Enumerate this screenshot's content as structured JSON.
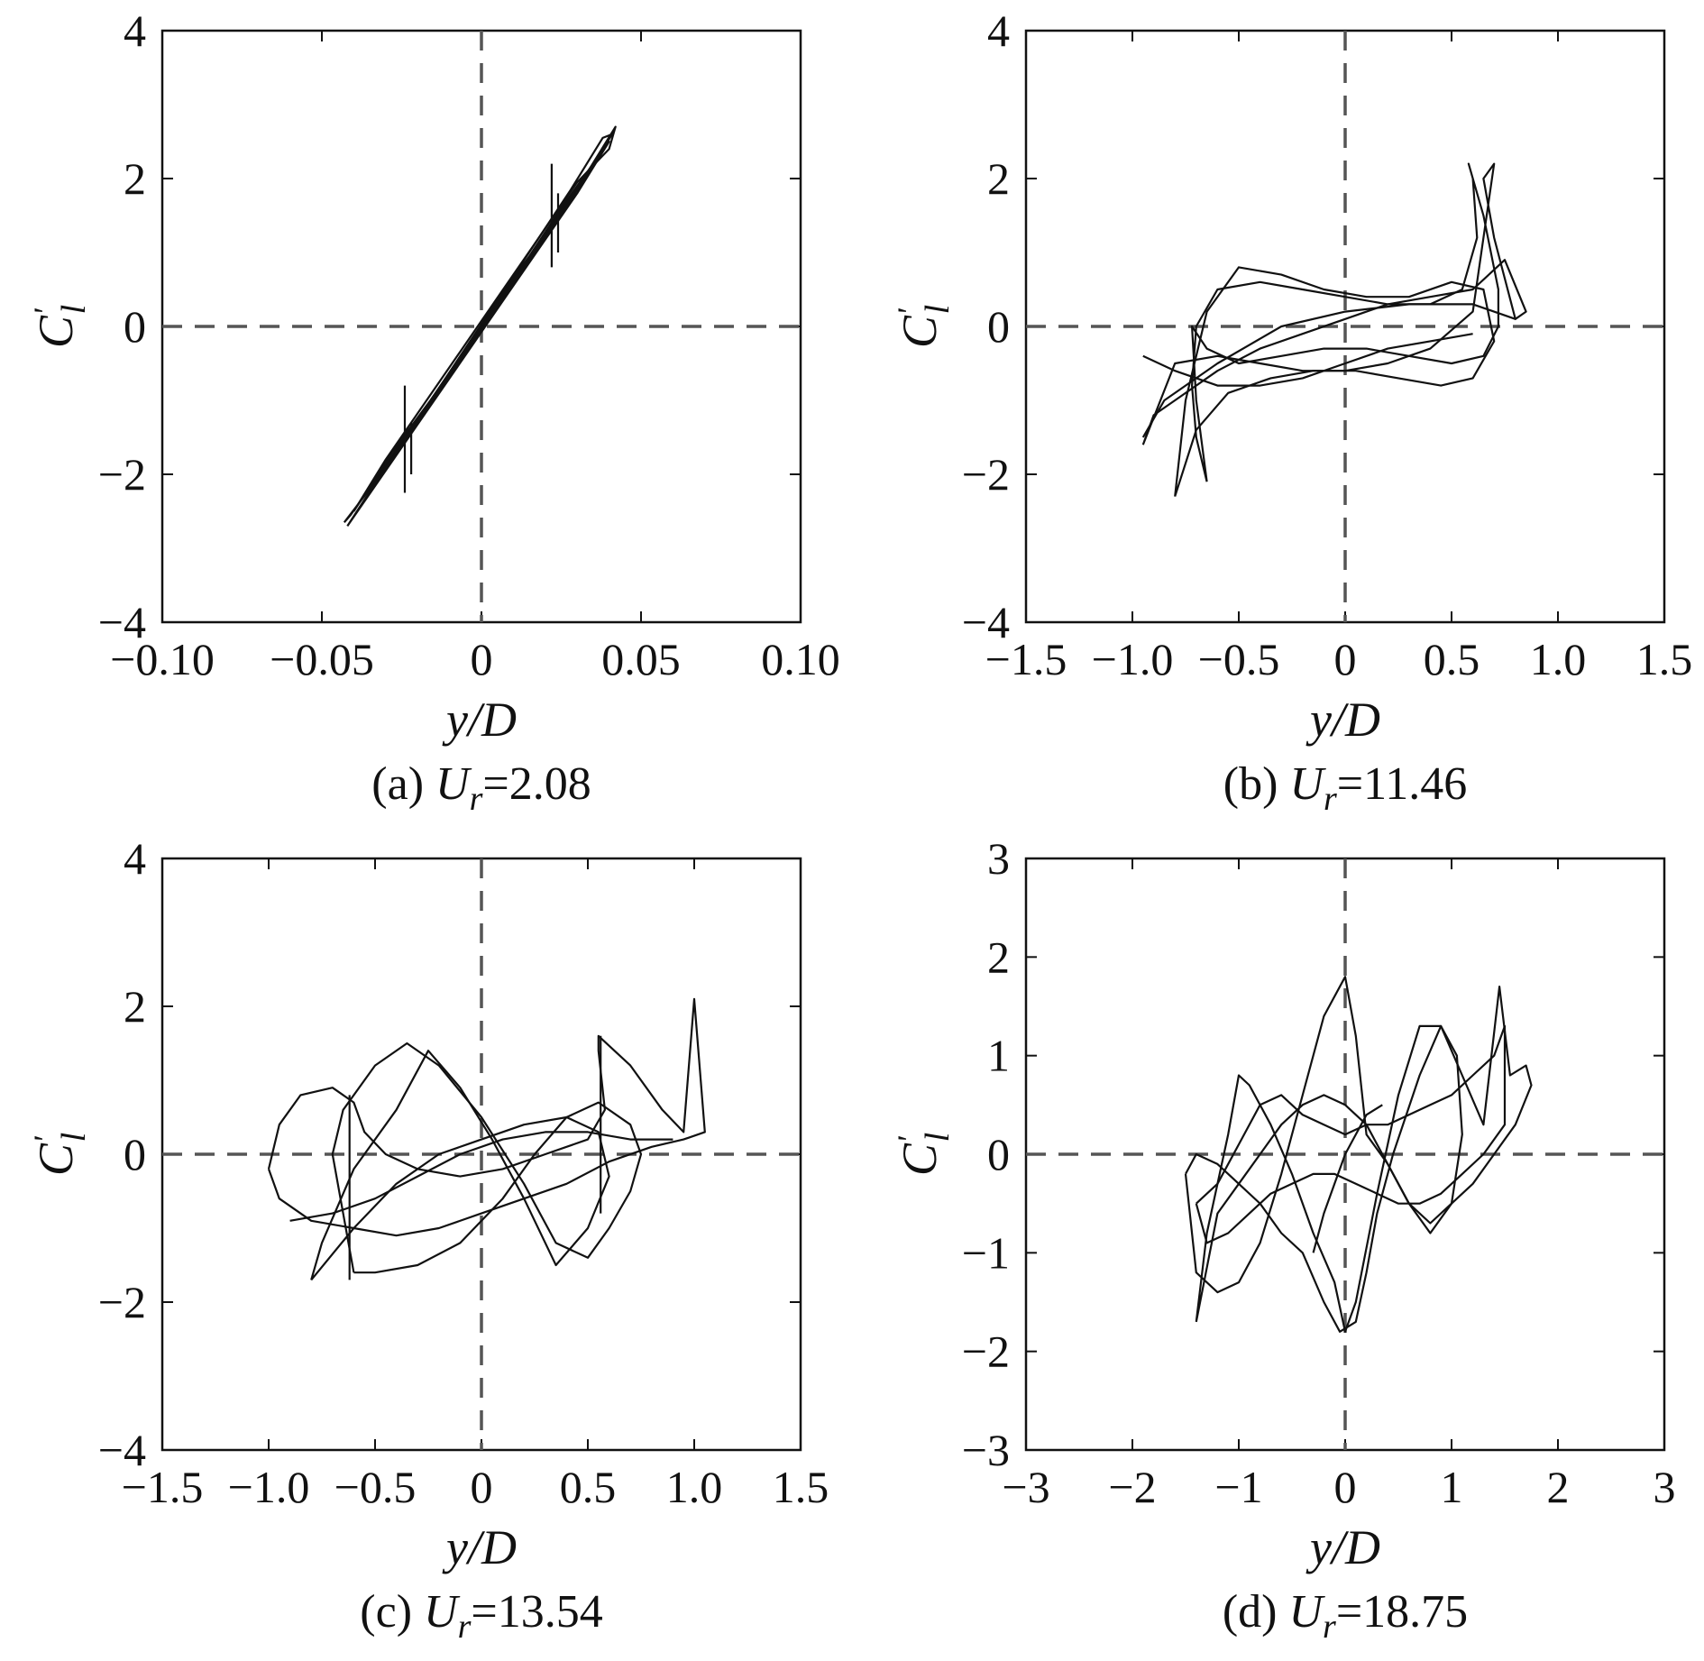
{
  "chart_data": [
    {
      "type": "line",
      "panel": "a",
      "caption": {
        "prefix": "(a) ",
        "var": "U",
        "sub": "r",
        "value": "=2.08"
      },
      "xlabel": "y/D",
      "ylabel": {
        "base": "C",
        "prime": "'",
        "sub": "l"
      },
      "xlim": [
        -0.1,
        0.1
      ],
      "ylim": [
        -4,
        4
      ],
      "xticks": [
        {
          "v": -0.1,
          "label": "−0.10"
        },
        {
          "v": -0.05,
          "label": "−0.05"
        },
        {
          "v": 0,
          "label": "0"
        },
        {
          "v": 0.05,
          "label": "0.05"
        },
        {
          "v": 0.1,
          "label": "0.10"
        }
      ],
      "yticks": [
        {
          "v": -4,
          "label": "−4"
        },
        {
          "v": -2,
          "label": "−2"
        },
        {
          "v": 0,
          "label": "0"
        },
        {
          "v": 2,
          "label": "2"
        },
        {
          "v": 4,
          "label": "4"
        }
      ],
      "reference_lines": {
        "x": 0,
        "y": 0,
        "style": "dashed"
      },
      "series": [
        {
          "x": [
            -0.043,
            -0.035,
            -0.025,
            -0.015,
            -0.005,
            0.005,
            0.015,
            0.025,
            0.035,
            0.041,
            0.038,
            0.028,
            0.018,
            0.008,
            -0.002,
            -0.012,
            -0.022,
            -0.032,
            -0.041,
            -0.043
          ],
          "y": [
            -2.65,
            -2.2,
            -1.55,
            -0.95,
            -0.3,
            0.35,
            0.95,
            1.6,
            2.2,
            2.6,
            2.55,
            1.85,
            1.2,
            0.55,
            -0.1,
            -0.75,
            -1.4,
            -2.0,
            -2.55,
            -2.65
          ]
        },
        {
          "x": [
            -0.042,
            -0.03,
            -0.018,
            -0.006,
            0.006,
            0.018,
            0.03,
            0.04,
            0.039,
            0.027,
            0.015,
            0.003,
            -0.009,
            -0.021,
            -0.033,
            -0.042
          ],
          "y": [
            -2.7,
            -1.95,
            -1.2,
            -0.45,
            0.3,
            1.05,
            1.8,
            2.5,
            2.45,
            1.65,
            0.9,
            0.15,
            -0.6,
            -1.35,
            -2.1,
            -2.7
          ]
        },
        {
          "x": [
            -0.04,
            -0.028,
            -0.016,
            -0.004,
            0.008,
            0.02,
            0.032,
            0.042,
            0.04,
            0.03,
            0.018,
            0.006,
            -0.006,
            -0.018,
            -0.03,
            -0.04
          ],
          "y": [
            -2.5,
            -1.7,
            -1.0,
            -0.25,
            0.5,
            1.25,
            2.0,
            2.7,
            2.4,
            1.95,
            1.2,
            0.45,
            -0.3,
            -1.05,
            -1.8,
            -2.5
          ]
        },
        {
          "x": [
            -0.024,
            -0.024
          ],
          "y": [
            -0.8,
            -2.25
          ]
        },
        {
          "x": [
            -0.022,
            -0.022
          ],
          "y": [
            -1.3,
            -2.0
          ]
        },
        {
          "x": [
            0.022,
            0.022
          ],
          "y": [
            2.2,
            0.8
          ]
        },
        {
          "x": [
            0.024,
            0.024
          ],
          "y": [
            1.8,
            1.0
          ]
        }
      ]
    },
    {
      "type": "line",
      "panel": "b",
      "caption": {
        "prefix": "(b) ",
        "var": "U",
        "sub": "r",
        "value": "=11.46"
      },
      "xlabel": "y/D",
      "ylabel": {
        "base": "C",
        "prime": "'",
        "sub": "l"
      },
      "xlim": [
        -1.5,
        1.5
      ],
      "ylim": [
        -4,
        4
      ],
      "xticks": [
        {
          "v": -1.5,
          "label": "−1.5"
        },
        {
          "v": -1.0,
          "label": "−1.0"
        },
        {
          "v": -0.5,
          "label": "−0.5"
        },
        {
          "v": 0,
          "label": "0"
        },
        {
          "v": 0.5,
          "label": "0.5"
        },
        {
          "v": 1.0,
          "label": "1.0"
        },
        {
          "v": 1.5,
          "label": "1.5"
        }
      ],
      "yticks": [
        {
          "v": -4,
          "label": "−4"
        },
        {
          "v": -2,
          "label": "−2"
        },
        {
          "v": 0,
          "label": "0"
        },
        {
          "v": 2,
          "label": "2"
        },
        {
          "v": 4,
          "label": "4"
        }
      ],
      "reference_lines": {
        "x": 0,
        "y": 0,
        "style": "dashed"
      },
      "series": [
        {
          "x": [
            -0.65,
            -0.7,
            -0.72,
            -0.7,
            -0.6,
            -0.4,
            -0.2,
            0.0,
            0.2,
            0.4,
            0.55,
            0.62,
            0.6,
            0.58,
            0.65,
            0.72,
            0.72,
            0.65,
            0.5,
            0.3,
            0.1,
            -0.1,
            -0.3,
            -0.5,
            -0.65,
            -0.72,
            -0.7,
            -0.65
          ],
          "y": [
            -2.1,
            -1.5,
            -0.8,
            0.0,
            0.5,
            0.6,
            0.5,
            0.4,
            0.3,
            0.3,
            0.5,
            1.2,
            2.0,
            2.2,
            1.5,
            0.5,
            0.0,
            -0.4,
            -0.5,
            -0.4,
            -0.3,
            -0.3,
            -0.4,
            -0.5,
            -0.3,
            0.0,
            -1.0,
            -2.1
          ]
        },
        {
          "x": [
            -0.95,
            -0.9,
            -0.8,
            -0.6,
            -0.4,
            -0.2,
            0.0,
            0.2,
            0.4,
            0.6,
            0.75,
            0.85,
            0.8,
            0.7,
            0.65,
            0.7,
            0.6,
            0.4,
            0.2,
            0.0,
            -0.2,
            -0.4,
            -0.6,
            -0.8,
            -0.95
          ],
          "y": [
            -1.6,
            -1.2,
            -1.0,
            -0.6,
            -0.3,
            -0.1,
            0.1,
            0.3,
            0.4,
            0.5,
            0.9,
            0.2,
            0.1,
            1.2,
            2.0,
            2.2,
            0.2,
            -0.3,
            -0.5,
            -0.6,
            -0.6,
            -0.5,
            -0.4,
            -0.5,
            -1.6
          ]
        },
        {
          "x": [
            -0.8,
            -0.75,
            -0.65,
            -0.5,
            -0.3,
            -0.1,
            0.1,
            0.3,
            0.5,
            0.65,
            0.7,
            0.6,
            0.45,
            0.25,
            0.05,
            -0.15,
            -0.35,
            -0.55,
            -0.7,
            -0.8
          ],
          "y": [
            -2.3,
            -1.0,
            0.2,
            0.8,
            0.7,
            0.5,
            0.4,
            0.4,
            0.6,
            0.5,
            -0.2,
            -0.7,
            -0.8,
            -0.7,
            -0.6,
            -0.6,
            -0.7,
            -0.9,
            -1.4,
            -2.3
          ]
        },
        {
          "x": [
            -0.95,
            -0.8,
            -0.6,
            -0.4,
            -0.2,
            0.0,
            0.2,
            0.4,
            0.6
          ],
          "y": [
            -0.4,
            -0.6,
            -0.8,
            -0.8,
            -0.7,
            -0.5,
            -0.3,
            -0.2,
            -0.1
          ]
        },
        {
          "x": [
            -0.95,
            -0.85,
            -0.6,
            -0.3,
            0.0,
            0.3,
            0.6,
            0.8
          ],
          "y": [
            -1.5,
            -1.0,
            -0.5,
            0.0,
            0.2,
            0.3,
            0.3,
            0.1
          ]
        }
      ]
    },
    {
      "type": "line",
      "panel": "c",
      "caption": {
        "prefix": "(c) ",
        "var": "U",
        "sub": "r",
        "value": "=13.54"
      },
      "xlabel": "y/D",
      "ylabel": {
        "base": "C",
        "prime": "'",
        "sub": "l"
      },
      "xlim": [
        -1.5,
        1.5
      ],
      "ylim": [
        -4,
        4
      ],
      "xticks": [
        {
          "v": -1.5,
          "label": "−1.5"
        },
        {
          "v": -1.0,
          "label": "−1.0"
        },
        {
          "v": -0.5,
          "label": "−0.5"
        },
        {
          "v": 0,
          "label": "0"
        },
        {
          "v": 0.5,
          "label": "0.5"
        },
        {
          "v": 1.0,
          "label": "1.0"
        },
        {
          "v": 1.5,
          "label": "1.5"
        }
      ],
      "yticks": [
        {
          "v": -4,
          "label": "−4"
        },
        {
          "v": -2,
          "label": "−2"
        },
        {
          "v": 0,
          "label": "0"
        },
        {
          "v": 2,
          "label": "2"
        },
        {
          "v": 4,
          "label": "4"
        }
      ],
      "reference_lines": {
        "x": 0,
        "y": 0,
        "style": "dashed"
      },
      "series": [
        {
          "x": [
            -1.0,
            -0.95,
            -0.85,
            -0.7,
            -0.6,
            -0.55,
            -0.45,
            -0.3,
            -0.1,
            0.1,
            0.3,
            0.5,
            0.58,
            0.55,
            0.55,
            0.7,
            0.85,
            0.95,
            1.0,
            1.05,
            0.95,
            0.8,
            0.6,
            0.4,
            0.2,
            0.0,
            -0.2,
            -0.4,
            -0.6,
            -0.8,
            -0.95,
            -1.0
          ],
          "y": [
            -0.2,
            0.4,
            0.8,
            0.9,
            0.7,
            0.3,
            0.0,
            -0.2,
            -0.3,
            -0.2,
            0.0,
            0.2,
            0.6,
            1.4,
            1.6,
            1.2,
            0.6,
            0.3,
            2.1,
            0.3,
            0.2,
            0.1,
            -0.1,
            -0.4,
            -0.6,
            -0.8,
            -1.0,
            -1.1,
            -1.0,
            -0.9,
            -0.6,
            -0.2
          ]
        },
        {
          "x": [
            -0.6,
            -0.65,
            -0.7,
            -0.65,
            -0.5,
            -0.35,
            -0.2,
            0.0,
            0.2,
            0.35,
            0.5,
            0.6,
            0.7,
            0.75,
            0.7,
            0.55,
            0.4,
            0.25,
            0.1,
            -0.1,
            -0.3,
            -0.5,
            -0.6
          ],
          "y": [
            -1.6,
            -0.8,
            0.0,
            0.6,
            1.2,
            1.5,
            1.2,
            0.5,
            -0.4,
            -1.2,
            -1.4,
            -1.0,
            -0.5,
            0.0,
            0.4,
            0.7,
            0.5,
            0.0,
            -0.6,
            -1.2,
            -1.5,
            -1.6,
            -1.6
          ]
        },
        {
          "x": [
            -0.8,
            -0.75,
            -0.6,
            -0.4,
            -0.25,
            -0.1,
            0.05,
            0.2,
            0.35,
            0.5,
            0.6,
            0.55,
            0.4,
            0.2,
            0.0,
            -0.2,
            -0.4,
            -0.6,
            -0.8
          ],
          "y": [
            -1.7,
            -1.2,
            -0.2,
            0.6,
            1.4,
            0.9,
            0.2,
            -0.6,
            -1.5,
            -1.0,
            -0.3,
            0.3,
            0.5,
            0.4,
            0.2,
            0.0,
            -0.4,
            -1.0,
            -1.7
          ]
        },
        {
          "x": [
            -0.62,
            -0.62
          ],
          "y": [
            0.8,
            -1.7
          ]
        },
        {
          "x": [
            0.56,
            0.56
          ],
          "y": [
            1.6,
            -0.8
          ]
        },
        {
          "x": [
            -0.9,
            -0.7,
            -0.5,
            -0.3,
            -0.1,
            0.1,
            0.3,
            0.5,
            0.7,
            0.9
          ],
          "y": [
            -0.9,
            -0.8,
            -0.6,
            -0.3,
            0.0,
            0.2,
            0.3,
            0.3,
            0.2,
            0.2
          ]
        }
      ]
    },
    {
      "type": "line",
      "panel": "d",
      "caption": {
        "prefix": "(d) ",
        "var": "U",
        "sub": "r",
        "value": "=18.75"
      },
      "xlabel": "y/D",
      "ylabel": {
        "base": "C",
        "prime": "'",
        "sub": "l"
      },
      "xlim": [
        -3,
        3
      ],
      "ylim": [
        -3,
        3
      ],
      "xticks": [
        {
          "v": -3,
          "label": "−3"
        },
        {
          "v": -2,
          "label": "−2"
        },
        {
          "v": -1,
          "label": "−1"
        },
        {
          "v": 0,
          "label": "0"
        },
        {
          "v": 1,
          "label": "1"
        },
        {
          "v": 2,
          "label": "2"
        },
        {
          "v": 3,
          "label": "3"
        }
      ],
      "yticks": [
        {
          "v": -3,
          "label": "−3"
        },
        {
          "v": -2,
          "label": "−2"
        },
        {
          "v": -1,
          "label": "−1"
        },
        {
          "v": 0,
          "label": "0"
        },
        {
          "v": 1,
          "label": "1"
        },
        {
          "v": 2,
          "label": "2"
        },
        {
          "v": 3,
          "label": "3"
        }
      ],
      "reference_lines": {
        "x": 0,
        "y": 0,
        "style": "dashed"
      },
      "series": [
        {
          "x": [
            -1.5,
            -1.4,
            -1.2,
            -1.0,
            -0.8,
            -0.6,
            -0.4,
            -0.2,
            -0.05,
            0.1,
            0.2,
            0.3,
            0.45,
            0.7,
            0.9,
            1.05,
            1.1,
            1.0,
            0.8,
            0.6,
            0.4,
            0.2,
            0.1,
            0.0,
            -0.2,
            -0.4,
            -0.6,
            -0.8,
            -1.0,
            -1.2,
            -1.4,
            -1.5
          ],
          "y": [
            -0.2,
            0.0,
            -0.1,
            -0.3,
            -0.5,
            -0.8,
            -1.0,
            -1.5,
            -1.8,
            -1.7,
            -1.2,
            -0.6,
            0.0,
            0.8,
            1.3,
            1.0,
            0.2,
            -0.5,
            -0.8,
            -0.5,
            -0.1,
            0.2,
            1.2,
            1.8,
            1.4,
            0.6,
            -0.2,
            -0.9,
            -1.3,
            -1.4,
            -1.2,
            -0.2
          ]
        },
        {
          "x": [
            -1.4,
            -1.3,
            -1.1,
            -1.0,
            -0.9,
            -0.7,
            -0.5,
            -0.3,
            -0.1,
            0.0,
            0.1,
            0.3,
            0.5,
            0.7,
            0.9,
            1.1,
            1.3,
            1.45,
            1.55,
            1.7,
            1.75,
            1.6,
            1.4,
            1.2,
            1.0,
            0.8,
            0.6,
            0.4,
            0.2,
            0.0,
            -0.2,
            -0.4,
            -0.6,
            -0.8,
            -1.0,
            -1.2,
            -1.4
          ],
          "y": [
            -1.7,
            -0.8,
            0.2,
            0.8,
            0.7,
            0.3,
            -0.2,
            -0.8,
            -1.3,
            -1.8,
            -1.5,
            -0.4,
            0.6,
            1.3,
            1.3,
            0.8,
            0.3,
            1.7,
            0.8,
            0.9,
            0.7,
            0.3,
            0.0,
            -0.3,
            -0.5,
            -0.7,
            -0.5,
            -0.1,
            0.3,
            0.5,
            0.6,
            0.5,
            0.3,
            0.0,
            -0.3,
            -0.6,
            -1.7
          ]
        },
        {
          "x": [
            -1.4,
            -1.2,
            -1.0,
            -0.8,
            -0.6,
            -0.4,
            -0.2,
            0.0,
            0.2,
            0.4,
            0.6,
            0.8,
            1.0,
            1.2,
            1.4,
            1.5,
            1.5,
            1.3,
            1.1,
            0.9,
            0.7,
            0.5,
            0.3,
            0.1,
            -0.1,
            -0.3,
            -0.5,
            -0.7,
            -0.9,
            -1.1,
            -1.3,
            -1.4
          ],
          "y": [
            -0.5,
            -0.3,
            0.1,
            0.5,
            0.6,
            0.4,
            0.3,
            0.2,
            0.3,
            0.3,
            0.4,
            0.5,
            0.6,
            0.8,
            1.0,
            1.3,
            0.3,
            0.0,
            -0.2,
            -0.4,
            -0.5,
            -0.5,
            -0.4,
            -0.3,
            -0.2,
            -0.2,
            -0.3,
            -0.4,
            -0.6,
            -0.8,
            -0.9,
            -0.5
          ]
        },
        {
          "x": [
            -0.3,
            -0.2,
            -0.1,
            0.0,
            0.1,
            0.2,
            0.35
          ],
          "y": [
            -1.0,
            -0.6,
            -0.3,
            0.0,
            0.2,
            0.4,
            0.5
          ]
        }
      ]
    }
  ]
}
